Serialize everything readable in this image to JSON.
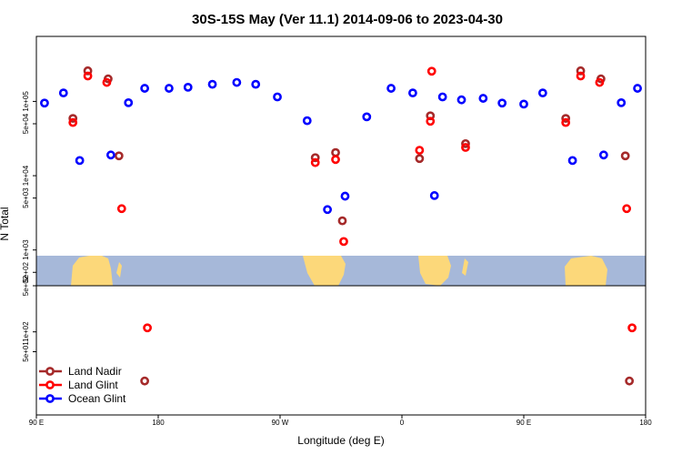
{
  "chart_data": {
    "type": "scatter",
    "title": "30S-15S May (Ver 11.1)   2014-09-06 to 2023-04-30",
    "xlabel": "Longitude (deg E)",
    "ylabel": "N Total",
    "xlim": [
      90,
      450
    ],
    "x_ticks": [
      {
        "value": 90,
        "label": "90 E"
      },
      {
        "value": 180,
        "label": "180"
      },
      {
        "value": 270,
        "label": "90 W"
      },
      {
        "value": 360,
        "label": "0"
      },
      {
        "value": 450,
        "label": "90 E"
      },
      {
        "value": 540,
        "label": "180"
      }
    ],
    "x_scale": {
      "domain": [
        90,
        540
      ]
    },
    "top_panel": {
      "y_scale": "log",
      "ylim": [
        500,
        500000
      ],
      "y_ticks": [
        {
          "value": 500,
          "label": "5e+02"
        },
        {
          "value": 1000,
          "label": "1e+03"
        },
        {
          "value": 5000,
          "label": "5e+03"
        },
        {
          "value": 10000,
          "label": "1e+04"
        },
        {
          "value": 50000,
          "label": "5e+04"
        },
        {
          "value": 100000,
          "label": "1e+05"
        }
      ]
    },
    "bottom_panel": {
      "y_scale": "log",
      "ylim": [
        10,
        500
      ],
      "y_ticks": [
        {
          "value": 500,
          "label": "5e+02"
        },
        {
          "value": 100,
          "label": "1e+02"
        },
        {
          "value": 50,
          "label": "5e+01"
        }
      ]
    },
    "series": [
      {
        "name": "Land Nadir",
        "color": "#a52a2a",
        "top": [
          [
            117,
            59000
          ],
          [
            128,
            258000
          ],
          [
            143,
            201000
          ],
          [
            151,
            18500
          ],
          [
            296,
            17500
          ],
          [
            311,
            20500
          ],
          [
            316,
            2470
          ],
          [
            373,
            17000
          ],
          [
            381,
            64000
          ],
          [
            407,
            27000
          ],
          [
            481,
            59000
          ],
          [
            492,
            258000
          ],
          [
            507,
            201000
          ],
          [
            525,
            18500
          ]
        ],
        "bottom": [
          [
            170,
            18
          ],
          [
            528,
            18
          ]
        ]
      },
      {
        "name": "Land Glint",
        "color": "#ff0000",
        "top": [
          [
            117,
            52000
          ],
          [
            128,
            220000
          ],
          [
            142,
            180000
          ],
          [
            153,
            3600
          ],
          [
            296,
            15000
          ],
          [
            311,
            16500
          ],
          [
            317,
            1300
          ],
          [
            373,
            22000
          ],
          [
            382,
            255000
          ],
          [
            381,
            54000
          ],
          [
            407,
            24000
          ],
          [
            481,
            52000
          ],
          [
            492,
            220000
          ],
          [
            506,
            180000
          ],
          [
            526,
            3600
          ]
        ],
        "bottom": [
          [
            172,
            115
          ],
          [
            530,
            115
          ]
        ]
      },
      {
        "name": "Ocean Glint",
        "color": "#0000ff",
        "top": [
          [
            96,
            95000
          ],
          [
            110,
            130000
          ],
          [
            122,
            16000
          ],
          [
            145,
            19000
          ],
          [
            158,
            96000
          ],
          [
            170,
            150000
          ],
          [
            188,
            150000
          ],
          [
            202,
            155000
          ],
          [
            220,
            170000
          ],
          [
            238,
            180000
          ],
          [
            252,
            170000
          ],
          [
            268,
            115000
          ],
          [
            290,
            55000
          ],
          [
            305,
            3500
          ],
          [
            318,
            5300
          ],
          [
            334,
            62000
          ],
          [
            352,
            150000
          ],
          [
            368,
            130000
          ],
          [
            384,
            5400
          ],
          [
            390,
            115000
          ],
          [
            404,
            105000
          ],
          [
            420,
            110000
          ],
          [
            434,
            95000
          ],
          [
            450,
            92000
          ],
          [
            464,
            130000
          ],
          [
            486,
            16000
          ],
          [
            509,
            19000
          ],
          [
            522,
            96000
          ],
          [
            534,
            150000
          ]
        ],
        "bottom": []
      }
    ],
    "legend": {
      "position": "bottom-left"
    },
    "grid": false,
    "background_map": "land-ocean"
  }
}
